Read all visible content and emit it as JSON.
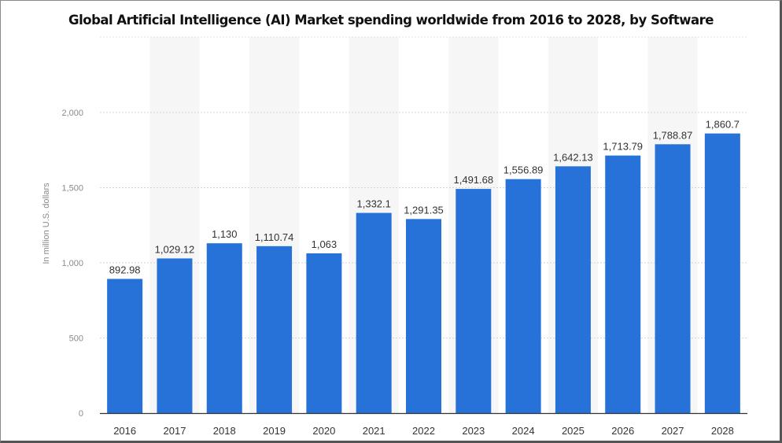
{
  "chart_data": {
    "type": "bar",
    "title": "Global Artificial Intelligence (AI) Market spending worldwide from 2016 to 2028, by Software",
    "xlabel": "",
    "ylabel": "In million U.S. dollars",
    "categories": [
      "2016",
      "2017",
      "2018",
      "2019",
      "2020",
      "2021",
      "2022",
      "2023",
      "2024",
      "2025",
      "2026",
      "2027",
      "2028"
    ],
    "values": [
      892.98,
      1029.12,
      1130,
      1110.74,
      1063,
      1332.1,
      1291.35,
      1491.68,
      1556.89,
      1642.13,
      1713.79,
      1788.87,
      1860.7
    ],
    "value_labels": [
      "892.98",
      "1,029.12",
      "1,130",
      "1,110.74",
      "1,063",
      "1,332.1",
      "1,291.35",
      "1,491.68",
      "1,556.89",
      "1,642.13",
      "1,713.79",
      "1,788.87",
      "1,860.7"
    ],
    "yticks": [
      {
        "value": 0,
        "label": "0"
      },
      {
        "value": 500,
        "label": "500"
      },
      {
        "value": 1000,
        "label": "1,000"
      },
      {
        "value": 1500,
        "label": "1,500"
      },
      {
        "value": 2000,
        "label": "2,000"
      }
    ],
    "ylim": [
      0,
      2000
    ],
    "grid": true,
    "bar_color": "#2672d9"
  }
}
